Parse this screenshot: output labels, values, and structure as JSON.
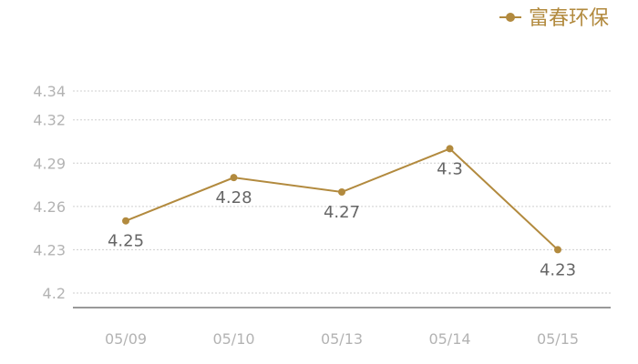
{
  "chart_data": {
    "type": "line",
    "categories": [
      "05/09",
      "05/10",
      "05/13",
      "05/14",
      "05/15"
    ],
    "series": [
      {
        "name": "富春环保",
        "values": [
          4.25,
          4.28,
          4.27,
          4.3,
          4.23
        ],
        "data_labels": [
          "4.25",
          "4.28",
          "4.27",
          "4.3",
          "4.23"
        ]
      }
    ],
    "y_ticks": [
      "4.34",
      "4.32",
      "4.29",
      "4.26",
      "4.23",
      "4.2"
    ],
    "ylim": [
      4.2,
      4.34
    ],
    "grid": true,
    "legend_position": "top-right",
    "colors": {
      "series": "#b28a3e",
      "grid": "#cfcfcf",
      "axis": "#333333",
      "tick_text": "#b3b3b3",
      "label_text": "#666666"
    }
  }
}
